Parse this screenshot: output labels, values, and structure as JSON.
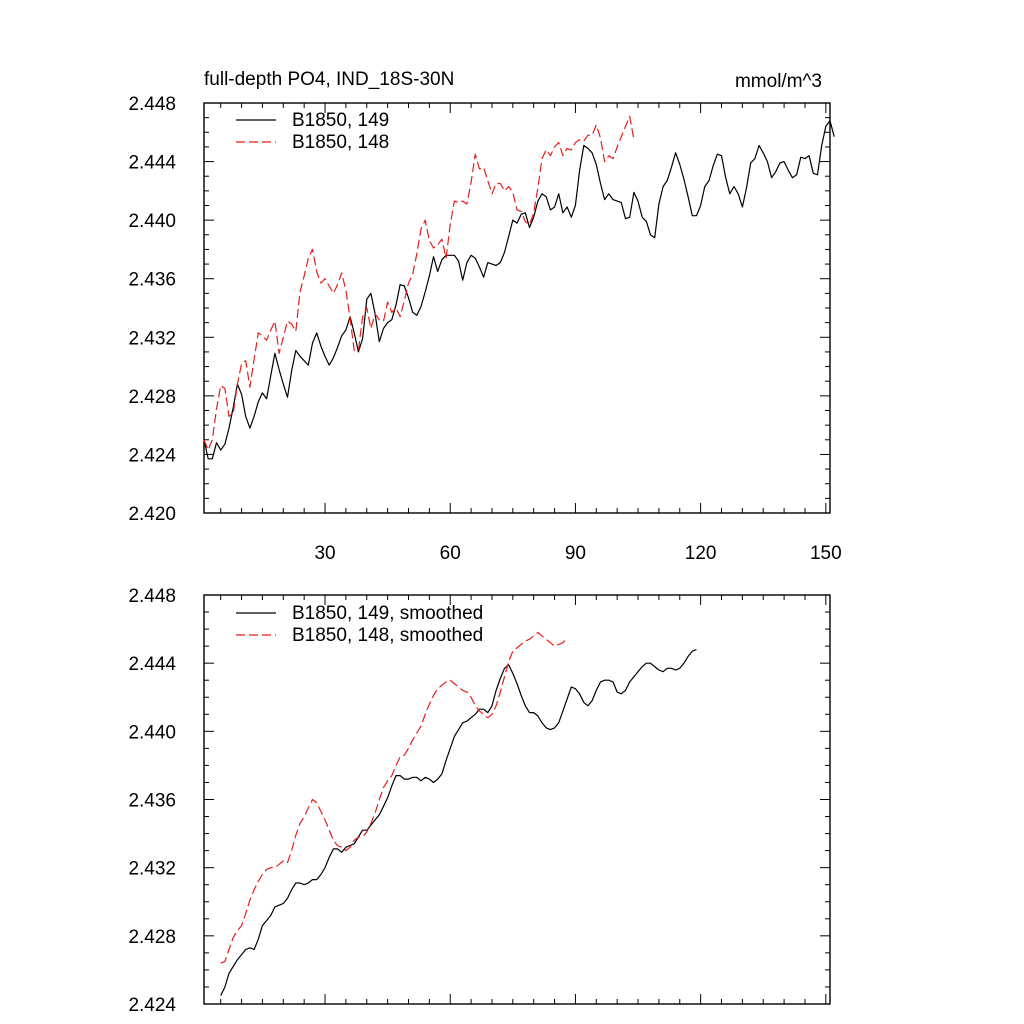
{
  "chart_data": [
    {
      "type": "line",
      "title": "full-depth PO4, IND_18S-30N",
      "units": "mmol/m^3",
      "xlim": [
        1,
        151
      ],
      "ylim": [
        2.42,
        2.448
      ],
      "x_ticks": [
        30,
        60,
        90,
        120,
        150
      ],
      "x_tick_labels": [
        "30",
        "60",
        "90",
        "120",
        "150"
      ],
      "y_ticks": [
        2.42,
        2.424,
        2.428,
        2.432,
        2.436,
        2.44,
        2.444,
        2.448
      ],
      "y_tick_labels": [
        "2.420",
        "2.424",
        "2.428",
        "2.432",
        "2.436",
        "2.440",
        "2.444",
        "2.448"
      ],
      "legend_position": "top-left",
      "series": [
        {
          "name": "B1850, 149",
          "color": "#000000",
          "dash": "solid",
          "x_start": 1,
          "values": [
            2.425,
            2.4237,
            2.4237,
            2.4248,
            2.4243,
            2.4247,
            2.4258,
            2.4272,
            2.4288,
            2.4281,
            2.4266,
            2.4258,
            2.4266,
            2.4276,
            2.4282,
            2.4278,
            2.4294,
            2.4309,
            2.4298,
            2.4288,
            2.4279,
            2.4297,
            2.4311,
            2.4307,
            2.4304,
            2.4301,
            2.4316,
            2.4323,
            2.4314,
            2.4307,
            2.4301,
            2.4306,
            2.4313,
            2.4321,
            2.4325,
            2.4334,
            2.4323,
            2.431,
            2.4319,
            2.4346,
            2.435,
            2.4336,
            2.4317,
            2.4326,
            2.433,
            2.4332,
            2.4342,
            2.4356,
            2.4355,
            2.4347,
            2.4337,
            2.4335,
            2.4341,
            2.4351,
            2.4362,
            2.4375,
            2.4365,
            2.4373,
            2.4376,
            2.4376,
            2.4376,
            2.4372,
            2.4359,
            2.4371,
            2.4376,
            2.4374,
            2.4368,
            2.4361,
            2.4371,
            2.437,
            2.4369,
            2.4371,
            2.4378,
            2.4389,
            2.44,
            2.4398,
            2.4404,
            2.4405,
            2.4395,
            2.4402,
            2.4413,
            2.4418,
            2.4416,
            2.4407,
            2.4409,
            2.4418,
            2.4405,
            2.4409,
            2.4402,
            2.441,
            2.4434,
            2.4451,
            2.4449,
            2.4446,
            2.4438,
            2.4425,
            2.4414,
            2.4418,
            2.4414,
            2.4413,
            2.4412,
            2.4401,
            2.4402,
            2.4419,
            2.4413,
            2.4402,
            2.4399,
            2.439,
            2.4388,
            2.4411,
            2.4423,
            2.4427,
            2.4436,
            2.4446,
            2.4438,
            2.4428,
            2.4416,
            2.4403,
            2.4403,
            2.441,
            2.4423,
            2.4427,
            2.4437,
            2.4445,
            2.4444,
            2.4429,
            2.4418,
            2.4423,
            2.4418,
            2.4409,
            2.4422,
            2.4439,
            2.4442,
            2.4451,
            2.4446,
            2.444,
            2.4429,
            2.4433,
            2.4439,
            2.444,
            2.4434,
            2.4429,
            2.4431,
            2.4443,
            2.4442,
            2.4444,
            2.4432,
            2.4431,
            2.4451,
            2.4464,
            2.4468,
            2.4457
          ]
        },
        {
          "name": "B1850, 148",
          "color": "#e81c1c",
          "dash": "dashed",
          "x_start": 1,
          "values": [
            2.425,
            2.4243,
            2.425,
            2.4271,
            2.4287,
            2.4285,
            2.4266,
            2.4268,
            2.4288,
            2.4302,
            2.4304,
            2.4286,
            2.4305,
            2.4323,
            2.4321,
            2.4318,
            2.4325,
            2.4331,
            2.4309,
            2.432,
            2.4331,
            2.4329,
            2.4324,
            2.4351,
            2.4362,
            2.4374,
            2.438,
            2.4365,
            2.4357,
            2.436,
            2.4355,
            2.435,
            2.4356,
            2.4364,
            2.4352,
            2.4333,
            2.4311,
            2.4311,
            2.4334,
            2.434,
            2.4326,
            2.4336,
            2.4332,
            2.4331,
            2.4344,
            2.4337,
            2.434,
            2.4334,
            2.4345,
            2.4357,
            2.4363,
            2.4377,
            2.4394,
            2.44,
            2.4386,
            2.4381,
            2.4383,
            2.4387,
            2.4374,
            2.4397,
            2.4413,
            2.4412,
            2.4413,
            2.4411,
            2.4426,
            2.4445,
            2.4435,
            2.4436,
            2.4427,
            2.4418,
            2.4425,
            2.4425,
            2.442,
            2.4423,
            2.4419,
            2.4407,
            2.4406,
            2.4399,
            2.4397,
            2.4405,
            2.4422,
            2.4442,
            2.4448,
            2.4444,
            2.445,
            2.4453,
            2.4444,
            2.4449,
            2.4448,
            2.4453,
            2.4455,
            2.4454,
            2.4458,
            2.4458,
            2.4465,
            2.4456,
            2.444,
            2.4444,
            2.4442,
            2.445,
            2.4457,
            2.4464,
            2.4471,
            2.4455
          ]
        }
      ]
    },
    {
      "type": "line",
      "xlim": [
        1,
        151
      ],
      "ylim": [
        2.424,
        2.448
      ],
      "x_ticks": [
        30,
        60,
        90,
        120,
        150
      ],
      "y_ticks": [
        2.424,
        2.428,
        2.432,
        2.436,
        2.44,
        2.444,
        2.448
      ],
      "y_tick_labels": [
        "2.424",
        "2.428",
        "2.432",
        "2.436",
        "2.440",
        "2.444",
        "2.448"
      ],
      "legend_position": "top-left",
      "series": [
        {
          "name": "B1850, 149, smoothed",
          "color": "#000000",
          "dash": "solid",
          "x_start": 5,
          "values": [
            2.4245,
            2.425,
            2.4258,
            2.4262,
            2.4266,
            2.4269,
            2.4272,
            2.4273,
            2.4272,
            2.4278,
            2.4286,
            2.4289,
            2.4292,
            2.4297,
            2.4298,
            2.4299,
            2.4302,
            2.4307,
            2.4311,
            2.4311,
            2.431,
            2.4311,
            2.4313,
            2.4313,
            2.4316,
            2.432,
            2.4326,
            2.4331,
            2.4331,
            2.4329,
            2.4332,
            2.4333,
            2.4334,
            2.4338,
            2.4342,
            2.4342,
            2.4345,
            2.4348,
            2.4351,
            2.4356,
            2.4361,
            2.4368,
            2.4374,
            2.4374,
            2.4372,
            2.4372,
            2.4373,
            2.4373,
            2.4371,
            2.4373,
            2.4372,
            2.437,
            2.4372,
            2.4375,
            2.4383,
            2.439,
            2.4397,
            2.4401,
            2.4405,
            2.4406,
            2.4408,
            2.441,
            2.4413,
            2.4413,
            2.4411,
            2.4415,
            2.4424,
            2.4431,
            2.4437,
            2.4439,
            2.4434,
            2.4428,
            2.4421,
            2.4415,
            2.4411,
            2.4411,
            2.4409,
            2.4405,
            2.4402,
            2.4401,
            2.4402,
            2.4405,
            2.4412,
            2.4419,
            2.4426,
            2.4425,
            2.4422,
            2.4417,
            2.4415,
            2.4418,
            2.4424,
            2.4429,
            2.443,
            2.443,
            2.4429,
            2.4423,
            2.4422,
            2.4424,
            2.4429,
            2.4432,
            2.4435,
            2.4438,
            2.444,
            2.444,
            2.4438,
            2.4436,
            2.4435,
            2.4437,
            2.4437,
            2.4436,
            2.4437,
            2.444,
            2.4444,
            2.4447,
            2.4448
          ]
        },
        {
          "name": "B1850, 148, smoothed",
          "color": "#e81c1c",
          "dash": "dashed",
          "x_start": 5,
          "values": [
            2.4264,
            2.4265,
            2.4272,
            2.4279,
            2.4283,
            2.4286,
            2.4293,
            2.4301,
            2.4307,
            2.4312,
            2.4316,
            2.4319,
            2.432,
            2.432,
            2.4322,
            2.4324,
            2.4323,
            2.433,
            2.4339,
            2.4346,
            2.435,
            2.4355,
            2.436,
            2.4358,
            2.4353,
            2.4348,
            2.4342,
            2.4336,
            2.4333,
            2.4332,
            2.433,
            2.4332,
            2.4336,
            2.4338,
            2.4338,
            2.4341,
            2.4346,
            2.4352,
            2.436,
            2.4367,
            2.4371,
            2.4374,
            2.438,
            2.4385,
            2.4386,
            2.439,
            2.4395,
            2.4399,
            2.4403,
            2.441,
            2.4416,
            2.4421,
            2.4425,
            2.4427,
            2.4429,
            2.443,
            2.4428,
            2.4426,
            2.4424,
            2.4423,
            2.442,
            2.4415,
            2.4412,
            2.441,
            2.4408,
            2.441,
            2.4415,
            2.4423,
            2.4432,
            2.4441,
            2.4447,
            2.4449,
            2.4451,
            2.4453,
            2.4454,
            2.4456,
            2.4458,
            2.4456,
            2.4454,
            2.4452,
            2.445,
            2.4451,
            2.4452,
            2.4455
          ]
        }
      ]
    }
  ]
}
